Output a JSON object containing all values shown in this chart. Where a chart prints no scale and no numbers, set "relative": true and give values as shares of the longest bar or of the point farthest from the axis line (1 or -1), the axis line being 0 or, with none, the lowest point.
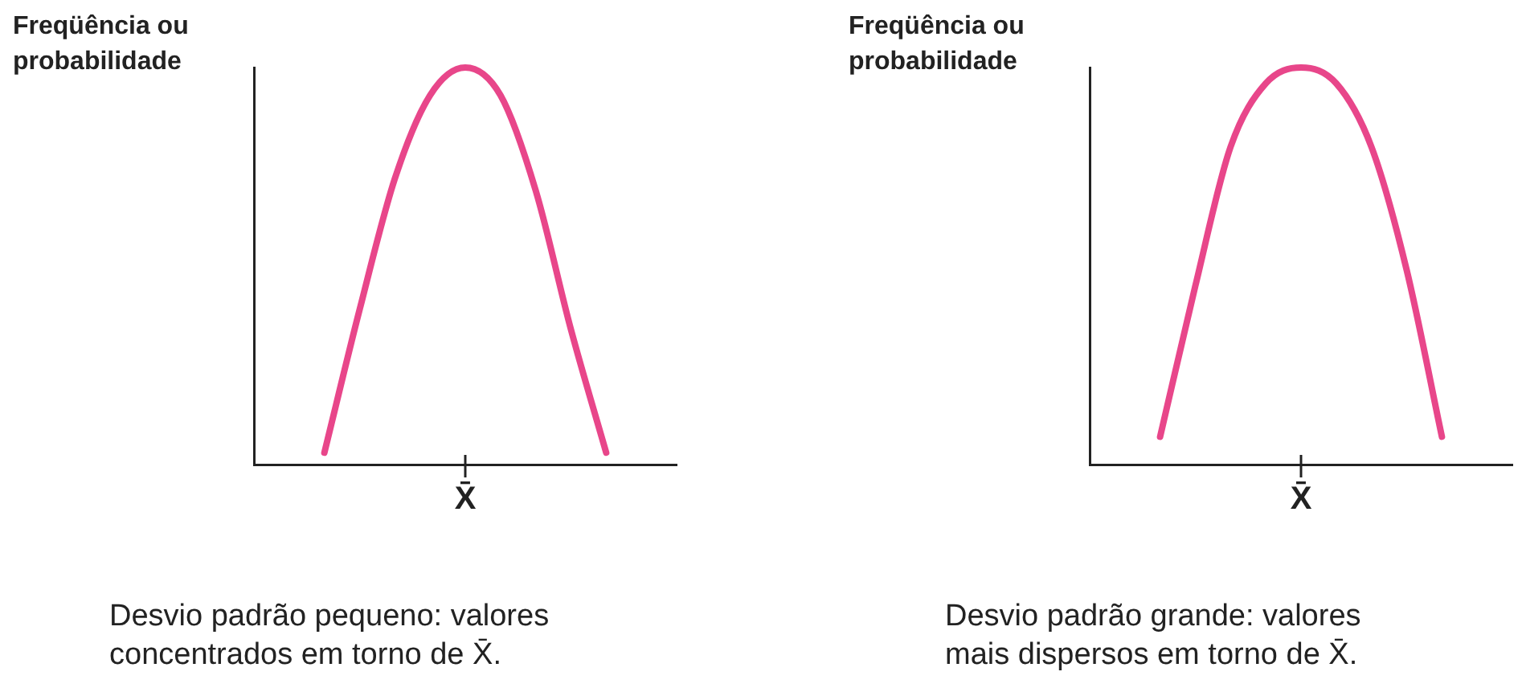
{
  "chart_data": [
    {
      "type": "line",
      "relative": true,
      "ylabel": "Freqüência ou probabilidade",
      "categories": [
        null,
        null,
        null,
        null,
        null,
        null,
        null,
        null,
        null,
        null,
        null,
        null,
        null
      ],
      "series": [
        {
          "color": "#e8468a",
          "values": [
            null,
            null,
            0.03,
            0.39,
            0.72,
            0.93,
            1,
            0.93,
            0.69,
            0.34,
            0.03,
            null,
            null
          ]
        }
      ],
      "marker": "none",
      "annotations": [
        "X̄",
        "Desvio padrão pequeno: valores\nconcentrados em torno de X̄."
      ]
    },
    {
      "type": "line",
      "relative": true,
      "ylabel": "Freqüência ou probabilidade",
      "categories": [
        null,
        null,
        null,
        null,
        null,
        null,
        null,
        null,
        null,
        null,
        null,
        null,
        null
      ],
      "series": [
        {
          "color": "#e8468a",
          "values": [
            null,
            null,
            0.07,
            0.45,
            0.8,
            0.96,
            1,
            0.96,
            0.8,
            0.49,
            0.07,
            null,
            null
          ]
        }
      ],
      "marker": "none",
      "annotations": [
        "X̄",
        "Desvio padrão grande: valores\nmais dispersos em torno de X̄."
      ]
    }
  ]
}
